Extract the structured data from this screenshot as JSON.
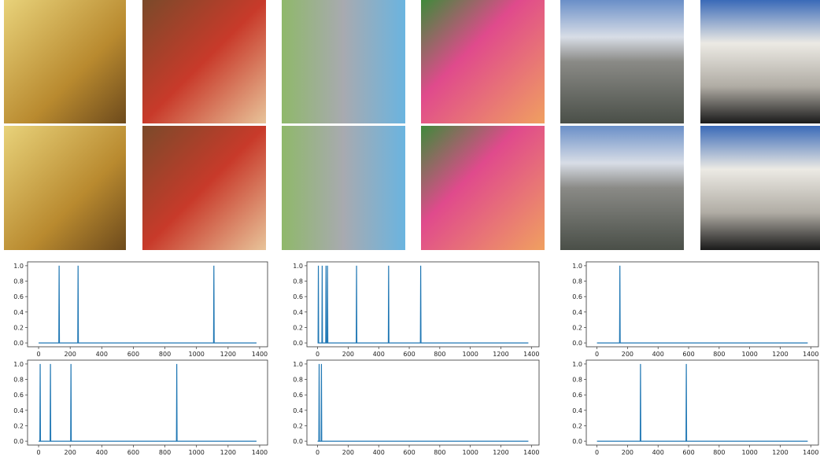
{
  "chart_data": [
    {
      "type": "line",
      "x": [
        0,
        128,
        130,
        132,
        248,
        250,
        252,
        1108,
        1110,
        1112,
        1380
      ],
      "series": [
        {
          "color": "#1f77b4",
          "values": [
            0,
            0,
            1,
            0,
            0,
            1,
            0,
            0,
            1,
            0,
            0
          ]
        }
      ],
      "xlim": [
        -70,
        1450
      ],
      "ylim": [
        -0.05,
        1.05
      ],
      "xticks": [
        0,
        200,
        400,
        600,
        800,
        1000,
        1200,
        1400
      ],
      "yticks": [
        {
          "value": 0,
          "label": "0.0"
        },
        {
          "value": 0.2,
          "label": "0.2"
        },
        {
          "value": 0.4,
          "label": "0.4"
        },
        {
          "value": 0.6,
          "label": "0.6"
        },
        {
          "value": 0.8,
          "label": "0.8"
        },
        {
          "value": 1,
          "label": "1.0"
        }
      ]
    },
    {
      "type": "line",
      "x": [
        0,
        3,
        5,
        7,
        28,
        30,
        32,
        53,
        55,
        57,
        63,
        65,
        67,
        253,
        255,
        257,
        463,
        465,
        467,
        673,
        675,
        677,
        1380
      ],
      "series": [
        {
          "color": "#1f77b4",
          "values": [
            0,
            0,
            1,
            0,
            0,
            1,
            0,
            0,
            1,
            0,
            0,
            1,
            0,
            0,
            1,
            0,
            0,
            1,
            0,
            0,
            1,
            0,
            0
          ]
        }
      ],
      "xlim": [
        -70,
        1450
      ],
      "ylim": [
        -0.05,
        1.05
      ],
      "xticks": [
        0,
        200,
        400,
        600,
        800,
        1000,
        1200,
        1400
      ],
      "yticks": [
        {
          "value": 0,
          "label": "0.0"
        },
        {
          "value": 0.2,
          "label": "0.2"
        },
        {
          "value": 0.4,
          "label": "0.4"
        },
        {
          "value": 0.6,
          "label": "0.6"
        },
        {
          "value": 0.8,
          "label": "0.8"
        },
        {
          "value": 1,
          "label": "1.0"
        }
      ]
    },
    {
      "type": "line",
      "x": [
        0,
        148,
        150,
        152,
        1380
      ],
      "series": [
        {
          "color": "#1f77b4",
          "values": [
            0,
            0,
            1,
            0,
            0
          ]
        }
      ],
      "xlim": [
        -70,
        1450
      ],
      "ylim": [
        -0.05,
        1.05
      ],
      "xticks": [
        0,
        200,
        400,
        600,
        800,
        1000,
        1200,
        1400
      ],
      "yticks": [
        {
          "value": 0,
          "label": "0.0"
        },
        {
          "value": 0.2,
          "label": "0.2"
        },
        {
          "value": 0.4,
          "label": "0.4"
        },
        {
          "value": 0.6,
          "label": "0.6"
        },
        {
          "value": 0.8,
          "label": "0.8"
        },
        {
          "value": 1,
          "label": "1.0"
        }
      ]
    },
    {
      "type": "line",
      "x": [
        0,
        8,
        10,
        12,
        73,
        75,
        77,
        203,
        205,
        207,
        873,
        875,
        877,
        1380
      ],
      "series": [
        {
          "color": "#1f77b4",
          "values": [
            0,
            0,
            1,
            0,
            0,
            1,
            0,
            0,
            1,
            0,
            0,
            1,
            0,
            0
          ]
        }
      ],
      "xlim": [
        -70,
        1450
      ],
      "ylim": [
        -0.05,
        1.05
      ],
      "xticks": [
        0,
        200,
        400,
        600,
        800,
        1000,
        1200,
        1400
      ],
      "yticks": [
        {
          "value": 0,
          "label": "0.0"
        },
        {
          "value": 0.2,
          "label": "0.2"
        },
        {
          "value": 0.4,
          "label": "0.4"
        },
        {
          "value": 0.6,
          "label": "0.6"
        },
        {
          "value": 0.8,
          "label": "0.8"
        },
        {
          "value": 1,
          "label": "1.0"
        }
      ]
    },
    {
      "type": "line",
      "x": [
        0,
        8,
        10,
        12,
        23,
        25,
        27,
        1380
      ],
      "series": [
        {
          "color": "#1f77b4",
          "values": [
            0,
            0,
            1,
            0,
            0,
            1,
            0,
            0
          ]
        }
      ],
      "xlim": [
        -70,
        1450
      ],
      "ylim": [
        -0.05,
        1.05
      ],
      "xticks": [
        0,
        200,
        400,
        600,
        800,
        1000,
        1200,
        1400
      ],
      "yticks": [
        {
          "value": 0,
          "label": "0.0"
        },
        {
          "value": 0.2,
          "label": "0.2"
        },
        {
          "value": 0.4,
          "label": "0.4"
        },
        {
          "value": 0.6,
          "label": "0.6"
        },
        {
          "value": 0.8,
          "label": "0.8"
        },
        {
          "value": 1,
          "label": "1.0"
        }
      ]
    },
    {
      "type": "line",
      "x": [
        0,
        283,
        285,
        287,
        583,
        585,
        587,
        1380
      ],
      "series": [
        {
          "color": "#1f77b4",
          "values": [
            0,
            0,
            1,
            0,
            0,
            1,
            0,
            0
          ]
        }
      ],
      "xlim": [
        -70,
        1450
      ],
      "ylim": [
        -0.05,
        1.05
      ],
      "xticks": [
        0,
        200,
        400,
        600,
        800,
        1000,
        1200,
        1400
      ],
      "yticks": [
        {
          "value": 0,
          "label": "0.0"
        },
        {
          "value": 0.2,
          "label": "0.2"
        },
        {
          "value": 0.4,
          "label": "0.4"
        },
        {
          "value": 0.6,
          "label": "0.6"
        },
        {
          "value": 0.8,
          "label": "0.8"
        },
        {
          "value": 1,
          "label": "1.0"
        }
      ]
    }
  ]
}
